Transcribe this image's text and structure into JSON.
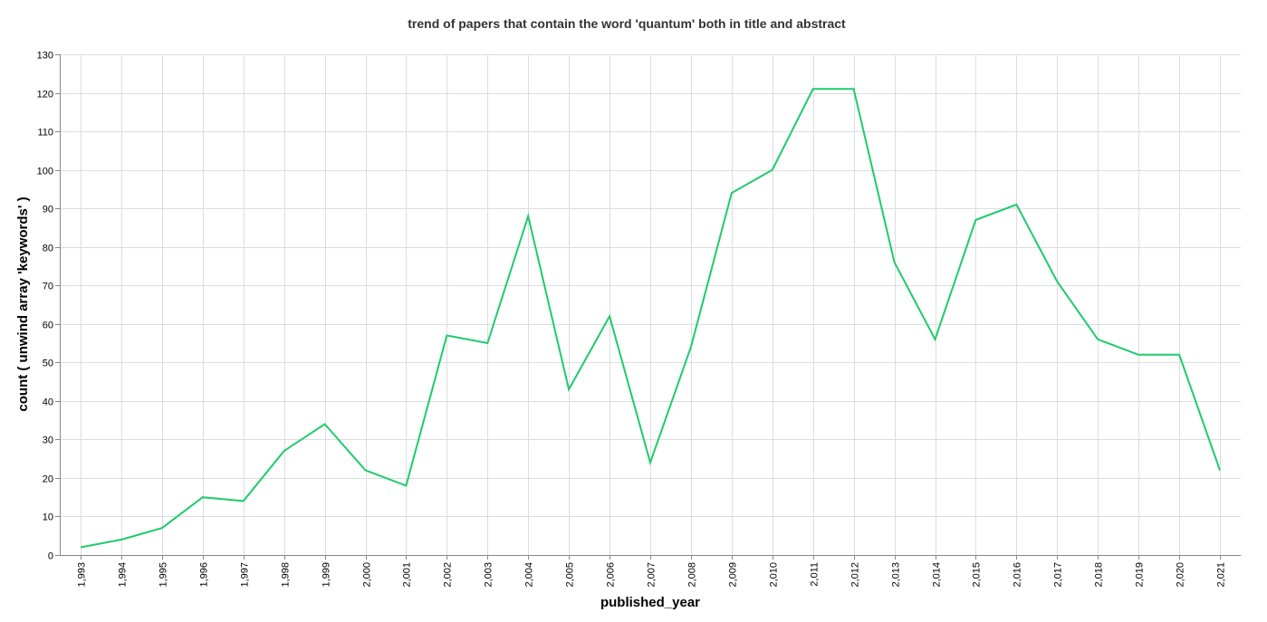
{
  "chart_data": {
    "type": "line",
    "title": "trend of papers that contain the word 'quantum' both in title and abstract",
    "xlabel": "published_year",
    "ylabel": "count ( unwind array 'keywords' )",
    "x": [
      1993,
      1994,
      1995,
      1996,
      1997,
      1998,
      1999,
      2000,
      2001,
      2002,
      2003,
      2004,
      2005,
      2006,
      2007,
      2008,
      2009,
      2010,
      2011,
      2012,
      2013,
      2014,
      2015,
      2016,
      2017,
      2018,
      2019,
      2020,
      2021
    ],
    "x_tick_labels": [
      "1,993",
      "1,994",
      "1,995",
      "1,996",
      "1,997",
      "1,998",
      "1,999",
      "2,000",
      "2,001",
      "2,002",
      "2,003",
      "2,004",
      "2,005",
      "2,006",
      "2,007",
      "2,008",
      "2,009",
      "2,010",
      "2,011",
      "2,012",
      "2,013",
      "2,014",
      "2,015",
      "2,016",
      "2,017",
      "2,018",
      "2,019",
      "2,020",
      "2,021"
    ],
    "series": [
      {
        "values": [
          2,
          4,
          7,
          15,
          14,
          27,
          34,
          22,
          18,
          57,
          55,
          88,
          43,
          62,
          24,
          54,
          94,
          100,
          121,
          121,
          76,
          56,
          87,
          91,
          71,
          56,
          52,
          52,
          22
        ],
        "color": "#1ecb6b"
      }
    ],
    "ylim": [
      0,
      130
    ],
    "y_ticks": [
      0,
      10,
      20,
      30,
      40,
      50,
      60,
      70,
      80,
      90,
      100,
      110,
      120,
      130
    ],
    "grid": true,
    "legend": "none"
  }
}
